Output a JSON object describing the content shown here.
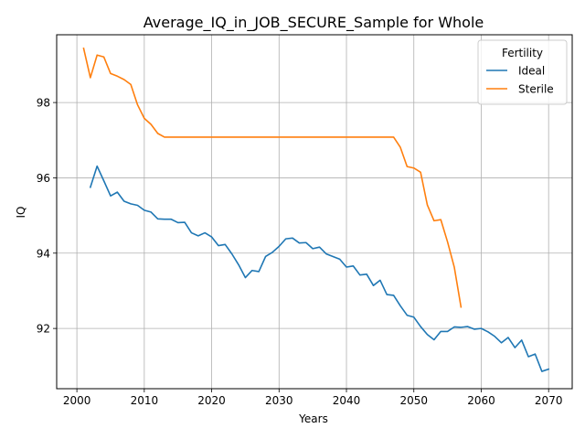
{
  "chart_data": {
    "type": "line",
    "title": "Average_IQ_in_JOB_SECURE_Sample for Whole",
    "xlabel": "Years",
    "ylabel": "IQ",
    "xlim": [
      1997,
      2073.5
    ],
    "ylim": [
      90.4,
      99.8
    ],
    "xticks": [
      2000,
      2010,
      2020,
      2030,
      2040,
      2050,
      2060,
      2070
    ],
    "yticks": [
      92,
      94,
      96,
      98
    ],
    "grid": true,
    "legend": {
      "title": "Fertility",
      "placement": "top-right"
    },
    "series": [
      {
        "name": "Ideal",
        "color": "#1f77b4",
        "x": [
          2002,
          2003,
          2004,
          2005,
          2006,
          2007,
          2008,
          2009,
          2010,
          2011,
          2012,
          2013,
          2014,
          2015,
          2016,
          2017,
          2018,
          2019,
          2020,
          2021,
          2022,
          2023,
          2024,
          2025,
          2026,
          2027,
          2028,
          2029,
          2030,
          2031,
          2032,
          2033,
          2034,
          2035,
          2036,
          2037,
          2038,
          2039,
          2040,
          2041,
          2042,
          2043,
          2044,
          2045,
          2046,
          2047,
          2048,
          2049,
          2050,
          2051,
          2052,
          2053,
          2054,
          2055,
          2056,
          2057,
          2058,
          2059,
          2060,
          2061,
          2062,
          2063,
          2064,
          2065,
          2066,
          2067,
          2068,
          2069,
          2070
        ],
        "values": [
          95.75,
          96.31,
          95.92,
          95.52,
          95.62,
          95.38,
          95.31,
          95.27,
          95.14,
          95.09,
          94.91,
          94.9,
          94.9,
          94.81,
          94.82,
          94.54,
          94.46,
          94.54,
          94.43,
          94.2,
          94.23,
          93.98,
          93.69,
          93.35,
          93.54,
          93.51,
          93.91,
          94.02,
          94.18,
          94.38,
          94.4,
          94.27,
          94.28,
          94.12,
          94.16,
          93.98,
          93.91,
          93.84,
          93.63,
          93.66,
          93.42,
          93.44,
          93.14,
          93.28,
          92.9,
          92.88,
          92.6,
          92.35,
          92.3,
          92.05,
          91.84,
          91.7,
          91.92,
          91.92,
          92.04,
          92.03,
          92.05,
          91.98,
          92.0,
          91.91,
          91.79,
          91.62,
          91.76,
          91.49,
          91.69,
          91.25,
          91.32,
          90.86,
          90.92
        ]
      },
      {
        "name": "Sterile",
        "color": "#ff7f0e",
        "x": [
          2001,
          2002,
          2003,
          2004,
          2005,
          2006,
          2007,
          2008,
          2009,
          2010,
          2011,
          2012,
          2013,
          2014,
          2015,
          2016,
          2017,
          2018,
          2019,
          2020,
          2021,
          2022,
          2023,
          2024,
          2025,
          2026,
          2027,
          2028,
          2029,
          2030,
          2031,
          2032,
          2033,
          2034,
          2035,
          2036,
          2037,
          2038,
          2039,
          2040,
          2041,
          2042,
          2043,
          2044,
          2045,
          2046,
          2047,
          2048,
          2049,
          2050,
          2051,
          2052,
          2053,
          2054,
          2055,
          2056,
          2057
        ],
        "values": [
          99.44,
          98.66,
          99.26,
          99.21,
          98.77,
          98.7,
          98.61,
          98.48,
          97.94,
          97.58,
          97.42,
          97.18,
          97.08,
          97.08,
          97.08,
          97.08,
          97.08,
          97.08,
          97.08,
          97.08,
          97.08,
          97.08,
          97.08,
          97.08,
          97.08,
          97.08,
          97.08,
          97.08,
          97.08,
          97.08,
          97.08,
          97.08,
          97.08,
          97.08,
          97.08,
          97.08,
          97.08,
          97.08,
          97.08,
          97.08,
          97.08,
          97.08,
          97.08,
          97.08,
          97.08,
          97.08,
          97.08,
          96.81,
          96.3,
          96.26,
          96.15,
          95.28,
          94.86,
          94.89,
          94.3,
          93.63,
          92.57
        ]
      }
    ]
  }
}
